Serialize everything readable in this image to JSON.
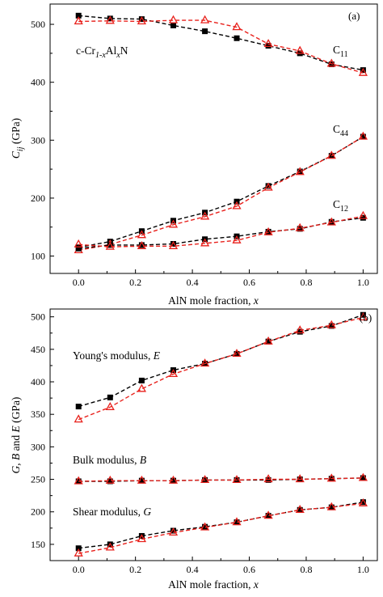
{
  "chart_data": [
    {
      "type": "line",
      "panel_label": "(a)",
      "xlabel": "AlN mole fraction, x",
      "ylabel": "C_ij (GPa)",
      "xlim": [
        -0.1,
        1.05
      ],
      "ylim": [
        70,
        535
      ],
      "xticks": [
        "0.0",
        "0.2",
        "0.4",
        "0.6",
        "0.8",
        "1.0"
      ],
      "yticks": [
        "100",
        "200",
        "300",
        "400",
        "500"
      ],
      "x": [
        0,
        0.111,
        0.222,
        0.333,
        0.444,
        0.556,
        0.667,
        0.778,
        0.889,
        1.0
      ],
      "series": [
        {
          "group": "C11",
          "marker": "square",
          "color": "#000000",
          "values": [
            515,
            510,
            509,
            498,
            488,
            476,
            463,
            450,
            431,
            421
          ]
        },
        {
          "group": "C11",
          "marker": "triangle",
          "color": "#e8211c",
          "values": [
            505,
            506,
            505,
            507,
            507,
            495,
            466,
            454,
            432,
            416
          ]
        },
        {
          "group": "C44",
          "marker": "square",
          "color": "#000000",
          "values": [
            115,
            125,
            143,
            161,
            175,
            194,
            221,
            246,
            273,
            306
          ]
        },
        {
          "group": "C44",
          "marker": "triangle",
          "color": "#e8211c",
          "values": [
            110,
            120,
            136,
            154,
            168,
            186,
            218,
            245,
            273,
            306
          ]
        },
        {
          "group": "C12",
          "marker": "square",
          "color": "#000000",
          "values": [
            113,
            119,
            119,
            121,
            129,
            134,
            142,
            147,
            159,
            166
          ]
        },
        {
          "group": "C12",
          "marker": "triangle",
          "color": "#e8211c",
          "values": [
            120,
            116,
            117,
            117,
            122,
            127,
            141,
            148,
            158,
            169
          ]
        }
      ],
      "annotations": {
        "material": {
          "prefix": "c-Cr",
          "sub1": "1-x",
          "mid": "Al",
          "sub2": "x",
          "suffix": "N"
        },
        "c11": {
          "base": "C",
          "sub": "11"
        },
        "c44": {
          "base": "C",
          "sub": "44"
        },
        "c12": {
          "base": "C",
          "sub": "12"
        }
      }
    },
    {
      "type": "line",
      "panel_label": "(b)",
      "xlabel": "AlN mole fraction, x",
      "ylabel": "G, B and E (GPa)",
      "xlim": [
        -0.1,
        1.05
      ],
      "ylim": [
        125,
        512
      ],
      "xticks": [
        "0.0",
        "0.2",
        "0.4",
        "0.6",
        "0.8",
        "1.0"
      ],
      "yticks": [
        "150",
        "200",
        "250",
        "300",
        "350",
        "400",
        "450",
        "500"
      ],
      "x": [
        0,
        0.111,
        0.222,
        0.333,
        0.444,
        0.556,
        0.667,
        0.778,
        0.889,
        1.0
      ],
      "series": [
        {
          "group": "E",
          "marker": "square",
          "color": "#000000",
          "values": [
            362,
            376,
            402,
            418,
            428,
            443,
            462,
            477,
            486,
            503
          ]
        },
        {
          "group": "E",
          "marker": "triangle",
          "color": "#e8211c",
          "values": [
            342,
            361,
            389,
            412,
            428,
            443,
            462,
            479,
            487,
            499
          ]
        },
        {
          "group": "B",
          "marker": "square",
          "color": "#000000",
          "values": [
            247,
            247,
            248,
            248,
            249,
            249,
            249,
            250,
            251,
            252
          ]
        },
        {
          "group": "B",
          "marker": "triangle",
          "color": "#e8211c",
          "values": [
            247,
            248,
            248,
            248,
            249,
            249,
            250,
            250,
            251,
            252
          ]
        },
        {
          "group": "G",
          "marker": "square",
          "color": "#000000",
          "values": [
            144,
            150,
            163,
            171,
            177,
            184,
            194,
            203,
            207,
            215
          ]
        },
        {
          "group": "G",
          "marker": "triangle",
          "color": "#e8211c",
          "values": [
            136,
            145,
            158,
            168,
            176,
            184,
            194,
            203,
            207,
            213
          ]
        }
      ],
      "annotations": {
        "youngs": {
          "text": "Young's modulus, ",
          "sym": "E"
        },
        "bulk": {
          "text": "Bulk modulus, ",
          "sym": "B"
        },
        "shear": {
          "text": "Shear modulus, ",
          "sym": "G"
        }
      }
    }
  ]
}
